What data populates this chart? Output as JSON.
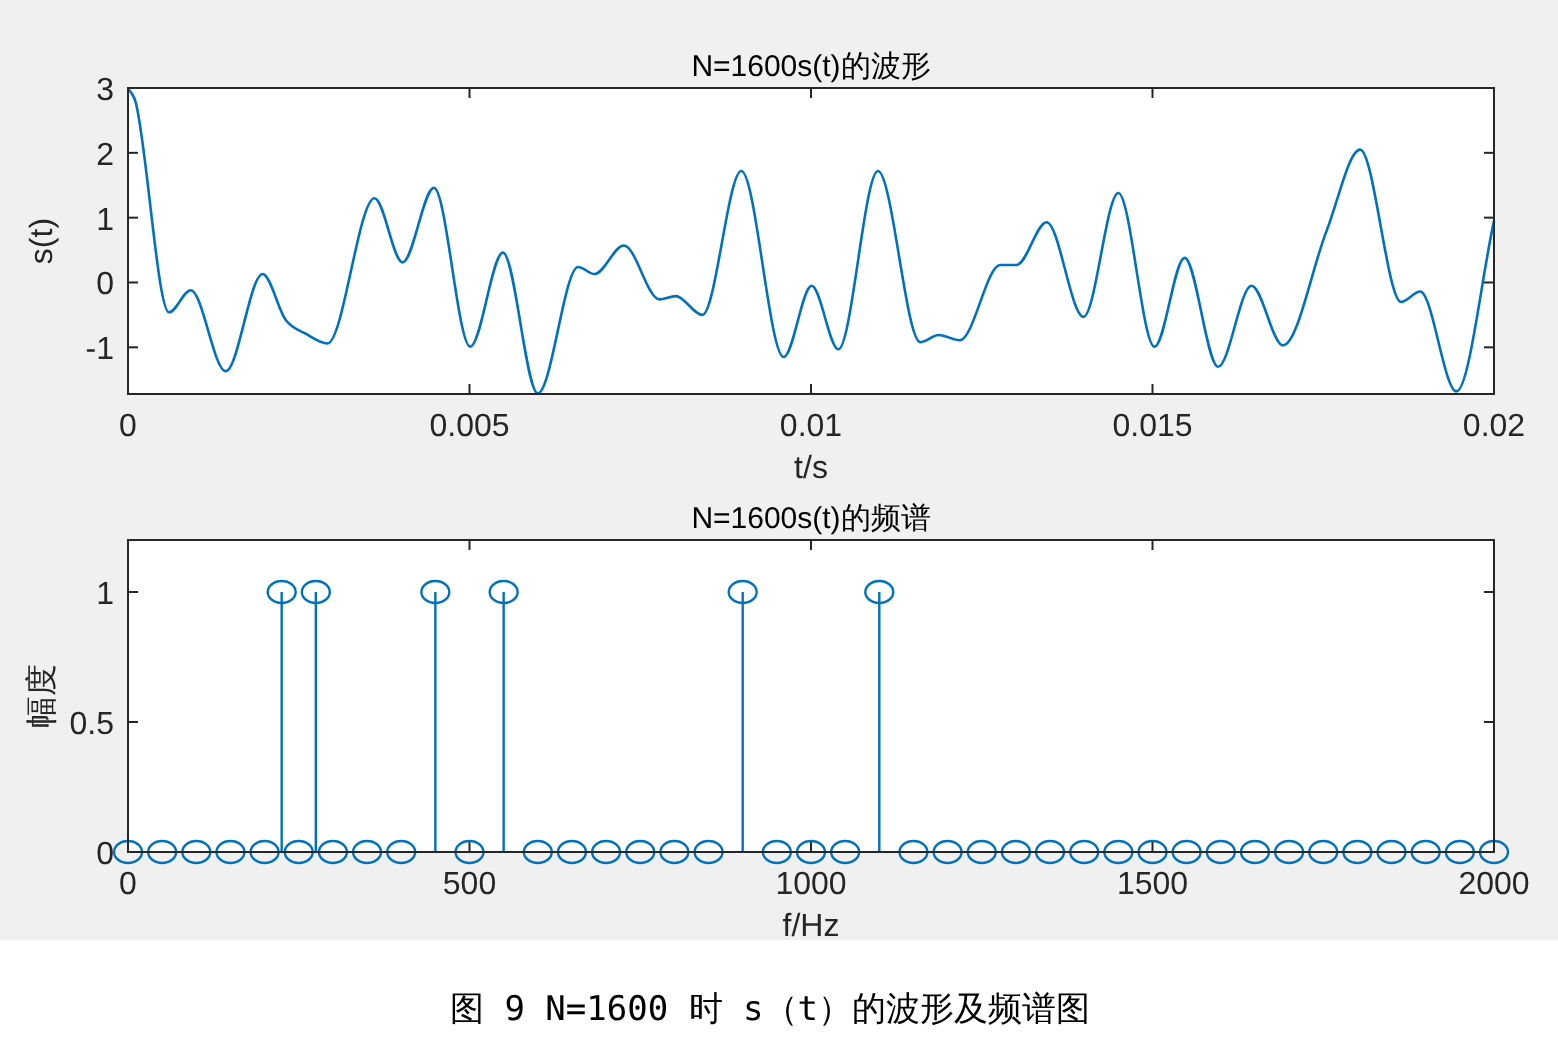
{
  "chart_data": [
    {
      "type": "line",
      "title": "N=1600s(t)的波形",
      "xlabel": "t/s",
      "ylabel": "s(t)",
      "color": "#0072bd",
      "x": [
        0,
        0.00012,
        0.0006,
        0.00092,
        0.00143,
        0.00197,
        0.00231,
        0.0026,
        0.00292,
        0.00361,
        0.00402,
        0.00448,
        0.00501,
        0.00549,
        0.006,
        0.00659,
        0.00683,
        0.00726,
        0.00778,
        0.00802,
        0.00841,
        0.00898,
        0.0096,
        0.01001,
        0.0104,
        0.01098,
        0.0116,
        0.01187,
        0.01218,
        0.01277,
        0.01301,
        0.01345,
        0.01399,
        0.0145,
        0.01503,
        0.01547,
        0.01596,
        0.01645,
        0.01691,
        0.01755,
        0.01804,
        0.01864,
        0.01892,
        0.01945,
        0.02
      ],
      "values": [
        3.0,
        2.75,
        -0.46,
        -0.12,
        -1.37,
        0.13,
        -0.58,
        -0.79,
        -0.94,
        1.3,
        0.31,
        1.46,
        -0.99,
        0.46,
        -1.71,
        0.24,
        0.13,
        0.57,
        -0.26,
        -0.21,
        -0.5,
        1.72,
        -1.15,
        -0.05,
        -1.03,
        1.72,
        -0.92,
        -0.81,
        -0.89,
        0.27,
        0.27,
        0.93,
        -0.53,
        1.38,
        -0.99,
        0.38,
        -1.3,
        -0.05,
        -0.97,
        0.8,
        2.05,
        -0.3,
        -0.14,
        -1.68,
        0.95
      ],
      "xlim": [
        0,
        0.02
      ],
      "ylim": [
        -1.72,
        3
      ],
      "xticks": [
        0,
        0.005,
        0.01,
        0.015,
        0.02
      ],
      "yticks": [
        -1,
        0,
        1,
        2,
        3
      ]
    },
    {
      "type": "lollipop",
      "title": "N=1600s(t)的频谱",
      "xlabel": "f/Hz",
      "ylabel": "幅度",
      "color": "#0072bd",
      "marker": "circle",
      "x": [
        0,
        50,
        100,
        150,
        200,
        225,
        250,
        275,
        300,
        350,
        400,
        450,
        500,
        550,
        600,
        650,
        700,
        750,
        800,
        850,
        900,
        950,
        1000,
        1050,
        1100,
        1150,
        1200,
        1250,
        1300,
        1350,
        1400,
        1450,
        1500,
        1550,
        1600,
        1650,
        1700,
        1750,
        1800,
        1850,
        1900,
        1950,
        2000
      ],
      "values": [
        0,
        0,
        0,
        0,
        0,
        1,
        0,
        1,
        0,
        0,
        0,
        1,
        0,
        1,
        0,
        0,
        0,
        0,
        0,
        0,
        1,
        0,
        0,
        0,
        1,
        0,
        0,
        0,
        0,
        0,
        0,
        0,
        0,
        0,
        0,
        0,
        0,
        0,
        0,
        0,
        0,
        0,
        0
      ],
      "xlim": [
        0,
        2000
      ],
      "ylim": [
        0,
        1.2
      ],
      "xticks": [
        0,
        500,
        1000,
        1500,
        2000
      ],
      "yticks": [
        0,
        0.5,
        1
      ],
      "annotations": [
        "图 9 N=1600 时 s（t）的波形及频谱图"
      ]
    }
  ]
}
